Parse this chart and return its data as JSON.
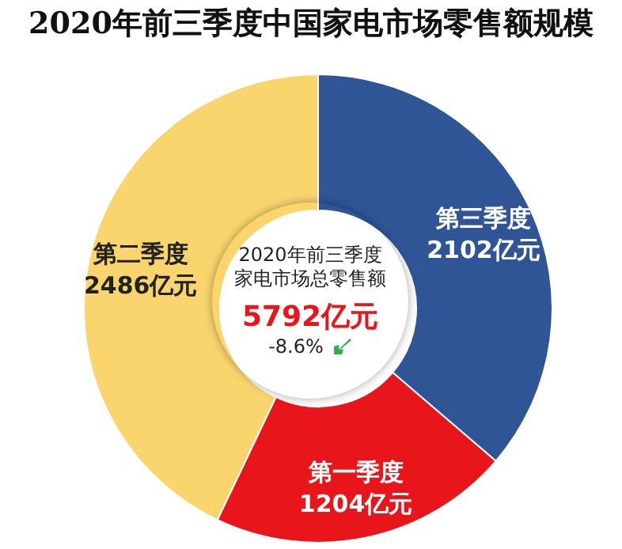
{
  "chart_data": {
    "type": "donut",
    "title": "2020年前三季度中国家电市场零售额规模",
    "categories": [
      "第三季度",
      "第一季度",
      "第二季度"
    ],
    "values": [
      2102,
      1204,
      2486
    ],
    "value_labels": [
      "2102亿元",
      "1204亿元",
      "2486亿元"
    ],
    "colors": [
      "#2f5597",
      "#e8161b",
      "#fad56e"
    ],
    "annotations": [
      "2020年前三季度",
      "家电市场总零售额",
      "5792亿元",
      "-8.6%"
    ]
  }
}
